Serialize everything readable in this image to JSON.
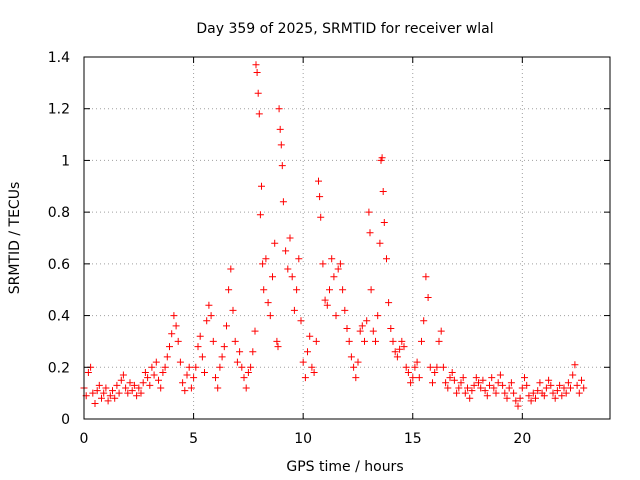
{
  "chart_data": {
    "type": "scatter",
    "title": "Day 359 of 2025, SRMTID for receiver wlal",
    "xlabel": "GPS time / hours",
    "ylabel": "SRMTID / TECUs",
    "xlim": [
      0,
      24
    ],
    "ylim": [
      0,
      1.4
    ],
    "xticks": [
      0,
      5,
      10,
      15,
      20
    ],
    "yticks": [
      0,
      0.2,
      0.4,
      0.6,
      0.8,
      1,
      1.2,
      1.4
    ],
    "xtick_labels": [
      "0",
      "5",
      "10",
      "15",
      "20"
    ],
    "ytick_labels": [
      "0",
      "0.2",
      "0.4",
      "0.6",
      "0.8",
      "1",
      "1.2",
      "1.4"
    ],
    "grid": true,
    "marker": "+",
    "color": "#ff0000",
    "series": [
      {
        "name": "SRMTID",
        "points": [
          [
            0.0,
            0.12
          ],
          [
            0.1,
            0.09
          ],
          [
            0.2,
            0.18
          ],
          [
            0.3,
            0.2
          ],
          [
            0.4,
            0.1
          ],
          [
            0.5,
            0.06
          ],
          [
            0.6,
            0.11
          ],
          [
            0.7,
            0.13
          ],
          [
            0.8,
            0.08
          ],
          [
            0.9,
            0.1
          ],
          [
            1.0,
            0.12
          ],
          [
            1.1,
            0.07
          ],
          [
            1.2,
            0.09
          ],
          [
            1.3,
            0.11
          ],
          [
            1.4,
            0.08
          ],
          [
            1.5,
            0.13
          ],
          [
            1.6,
            0.1
          ],
          [
            1.7,
            0.15
          ],
          [
            1.8,
            0.17
          ],
          [
            1.9,
            0.12
          ],
          [
            2.0,
            0.1
          ],
          [
            2.1,
            0.14
          ],
          [
            2.2,
            0.11
          ],
          [
            2.3,
            0.13
          ],
          [
            2.4,
            0.09
          ],
          [
            2.5,
            0.12
          ],
          [
            2.6,
            0.1
          ],
          [
            2.7,
            0.14
          ],
          [
            2.8,
            0.18
          ],
          [
            2.9,
            0.16
          ],
          [
            3.0,
            0.13
          ],
          [
            3.1,
            0.2
          ],
          [
            3.2,
            0.17
          ],
          [
            3.3,
            0.22
          ],
          [
            3.4,
            0.15
          ],
          [
            3.5,
            0.12
          ],
          [
            3.6,
            0.18
          ],
          [
            3.7,
            0.2
          ],
          [
            3.8,
            0.24
          ],
          [
            3.9,
            0.28
          ],
          [
            4.0,
            0.33
          ],
          [
            4.1,
            0.4
          ],
          [
            4.2,
            0.36
          ],
          [
            4.3,
            0.3
          ],
          [
            4.4,
            0.22
          ],
          [
            4.5,
            0.14
          ],
          [
            4.6,
            0.11
          ],
          [
            4.7,
            0.17
          ],
          [
            4.8,
            0.2
          ],
          [
            4.9,
            0.12
          ],
          [
            5.0,
            0.16
          ],
          [
            5.1,
            0.2
          ],
          [
            5.2,
            0.28
          ],
          [
            5.3,
            0.32
          ],
          [
            5.4,
            0.24
          ],
          [
            5.5,
            0.18
          ],
          [
            5.6,
            0.38
          ],
          [
            5.7,
            0.44
          ],
          [
            5.8,
            0.4
          ],
          [
            5.9,
            0.3
          ],
          [
            6.0,
            0.16
          ],
          [
            6.1,
            0.12
          ],
          [
            6.2,
            0.2
          ],
          [
            6.3,
            0.24
          ],
          [
            6.4,
            0.28
          ],
          [
            6.5,
            0.36
          ],
          [
            6.6,
            0.5
          ],
          [
            6.7,
            0.58
          ],
          [
            6.8,
            0.42
          ],
          [
            6.9,
            0.3
          ],
          [
            7.0,
            0.22
          ],
          [
            7.1,
            0.26
          ],
          [
            7.2,
            0.2
          ],
          [
            7.3,
            0.16
          ],
          [
            7.4,
            0.12
          ],
          [
            7.5,
            0.18
          ],
          [
            7.6,
            0.2
          ],
          [
            7.7,
            0.26
          ],
          [
            7.8,
            0.34
          ],
          [
            7.85,
            1.37
          ],
          [
            7.9,
            1.34
          ],
          [
            7.95,
            1.26
          ],
          [
            8.0,
            1.18
          ],
          [
            8.05,
            0.79
          ],
          [
            8.1,
            0.9
          ],
          [
            8.15,
            0.6
          ],
          [
            8.2,
            0.5
          ],
          [
            8.3,
            0.62
          ],
          [
            8.4,
            0.45
          ],
          [
            8.5,
            0.4
          ],
          [
            8.6,
            0.55
          ],
          [
            8.7,
            0.68
          ],
          [
            8.8,
            0.3
          ],
          [
            8.85,
            0.28
          ],
          [
            8.9,
            1.2
          ],
          [
            8.95,
            1.12
          ],
          [
            9.0,
            1.06
          ],
          [
            9.05,
            0.98
          ],
          [
            9.1,
            0.84
          ],
          [
            9.2,
            0.65
          ],
          [
            9.3,
            0.58
          ],
          [
            9.4,
            0.7
          ],
          [
            9.5,
            0.55
          ],
          [
            9.6,
            0.42
          ],
          [
            9.7,
            0.5
          ],
          [
            9.8,
            0.62
          ],
          [
            9.9,
            0.38
          ],
          [
            10.0,
            0.22
          ],
          [
            10.1,
            0.16
          ],
          [
            10.2,
            0.26
          ],
          [
            10.3,
            0.32
          ],
          [
            10.4,
            0.2
          ],
          [
            10.5,
            0.18
          ],
          [
            10.6,
            0.3
          ],
          [
            10.7,
            0.92
          ],
          [
            10.75,
            0.86
          ],
          [
            10.8,
            0.78
          ],
          [
            10.9,
            0.6
          ],
          [
            11.0,
            0.46
          ],
          [
            11.1,
            0.44
          ],
          [
            11.2,
            0.5
          ],
          [
            11.3,
            0.62
          ],
          [
            11.4,
            0.55
          ],
          [
            11.5,
            0.4
          ],
          [
            11.6,
            0.58
          ],
          [
            11.7,
            0.6
          ],
          [
            11.8,
            0.5
          ],
          [
            11.9,
            0.42
          ],
          [
            12.0,
            0.35
          ],
          [
            12.1,
            0.3
          ],
          [
            12.2,
            0.24
          ],
          [
            12.3,
            0.2
          ],
          [
            12.4,
            0.16
          ],
          [
            12.5,
            0.22
          ],
          [
            12.6,
            0.34
          ],
          [
            12.7,
            0.36
          ],
          [
            12.8,
            0.3
          ],
          [
            12.9,
            0.38
          ],
          [
            13.0,
            0.8
          ],
          [
            13.05,
            0.72
          ],
          [
            13.1,
            0.5
          ],
          [
            13.2,
            0.34
          ],
          [
            13.3,
            0.3
          ],
          [
            13.4,
            0.4
          ],
          [
            13.5,
            0.68
          ],
          [
            13.55,
            1.0
          ],
          [
            13.6,
            1.01
          ],
          [
            13.65,
            0.88
          ],
          [
            13.7,
            0.76
          ],
          [
            13.8,
            0.62
          ],
          [
            13.9,
            0.45
          ],
          [
            14.0,
            0.35
          ],
          [
            14.1,
            0.3
          ],
          [
            14.2,
            0.26
          ],
          [
            14.3,
            0.24
          ],
          [
            14.4,
            0.27
          ],
          [
            14.5,
            0.3
          ],
          [
            14.6,
            0.28
          ],
          [
            14.7,
            0.2
          ],
          [
            14.8,
            0.18
          ],
          [
            14.9,
            0.14
          ],
          [
            15.0,
            0.16
          ],
          [
            15.1,
            0.2
          ],
          [
            15.2,
            0.22
          ],
          [
            15.3,
            0.16
          ],
          [
            15.4,
            0.3
          ],
          [
            15.5,
            0.38
          ],
          [
            15.6,
            0.55
          ],
          [
            15.7,
            0.47
          ],
          [
            15.8,
            0.2
          ],
          [
            15.9,
            0.14
          ],
          [
            16.0,
            0.18
          ],
          [
            16.1,
            0.2
          ],
          [
            16.2,
            0.3
          ],
          [
            16.3,
            0.34
          ],
          [
            16.4,
            0.2
          ],
          [
            16.5,
            0.14
          ],
          [
            16.6,
            0.12
          ],
          [
            16.7,
            0.16
          ],
          [
            16.8,
            0.18
          ],
          [
            16.9,
            0.15
          ],
          [
            17.0,
            0.1
          ],
          [
            17.1,
            0.12
          ],
          [
            17.2,
            0.14
          ],
          [
            17.3,
            0.16
          ],
          [
            17.4,
            0.1
          ],
          [
            17.5,
            0.12
          ],
          [
            17.6,
            0.08
          ],
          [
            17.7,
            0.11
          ],
          [
            17.8,
            0.13
          ],
          [
            17.9,
            0.16
          ],
          [
            18.0,
            0.14
          ],
          [
            18.1,
            0.12
          ],
          [
            18.2,
            0.15
          ],
          [
            18.3,
            0.11
          ],
          [
            18.4,
            0.09
          ],
          [
            18.5,
            0.13
          ],
          [
            18.6,
            0.16
          ],
          [
            18.7,
            0.12
          ],
          [
            18.8,
            0.1
          ],
          [
            18.9,
            0.14
          ],
          [
            19.0,
            0.17
          ],
          [
            19.1,
            0.13
          ],
          [
            19.2,
            0.1
          ],
          [
            19.3,
            0.08
          ],
          [
            19.4,
            0.12
          ],
          [
            19.5,
            0.14
          ],
          [
            19.6,
            0.1
          ],
          [
            19.7,
            0.07
          ],
          [
            19.8,
            0.05
          ],
          [
            19.9,
            0.08
          ],
          [
            20.0,
            0.12
          ],
          [
            20.1,
            0.16
          ],
          [
            20.2,
            0.13
          ],
          [
            20.3,
            0.09
          ],
          [
            20.4,
            0.07
          ],
          [
            20.5,
            0.1
          ],
          [
            20.6,
            0.08
          ],
          [
            20.7,
            0.11
          ],
          [
            20.8,
            0.14
          ],
          [
            20.9,
            0.1
          ],
          [
            21.0,
            0.09
          ],
          [
            21.1,
            0.12
          ],
          [
            21.2,
            0.15
          ],
          [
            21.3,
            0.13
          ],
          [
            21.4,
            0.1
          ],
          [
            21.5,
            0.08
          ],
          [
            21.6,
            0.11
          ],
          [
            21.7,
            0.13
          ],
          [
            21.8,
            0.09
          ],
          [
            21.9,
            0.12
          ],
          [
            22.0,
            0.1
          ],
          [
            22.1,
            0.14
          ],
          [
            22.2,
            0.12
          ],
          [
            22.3,
            0.17
          ],
          [
            22.4,
            0.21
          ],
          [
            22.5,
            0.13
          ],
          [
            22.6,
            0.1
          ],
          [
            22.7,
            0.15
          ],
          [
            22.8,
            0.12
          ]
        ]
      }
    ]
  }
}
